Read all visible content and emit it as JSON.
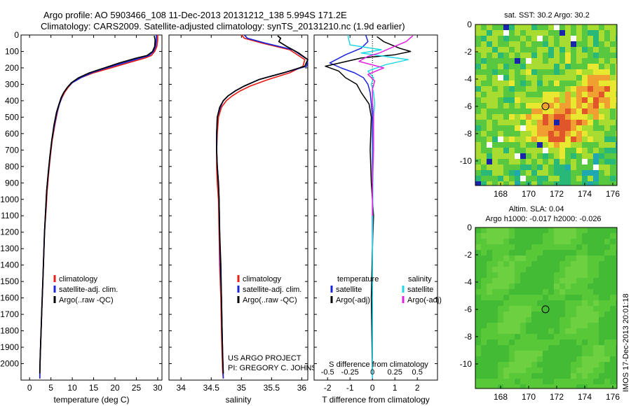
{
  "header": {
    "line1": "Argo profile: AO 5903466_108 11-Dec-2013 20131212_138 5.994S 171.2E",
    "line2": "Climatology: CARS2009. Satellite-adjusted climatology: synTS_20131210.nc (1.9d earlier)"
  },
  "sidebar_stamp": "IMOS 17-Dec-2013 20:01:18",
  "colors": {
    "climatology": "#e8201a",
    "satellite": "#1b25d8",
    "argo": "#000000",
    "cyan": "#22d8e8",
    "magenta": "#e020e0"
  },
  "chart_data": [
    {
      "type": "line",
      "name": "temperature-profile",
      "xlabel": "temperature (deg C)",
      "xlim": [
        -2,
        31
      ],
      "xticks": [
        0,
        5,
        10,
        15,
        20,
        25,
        30
      ],
      "ylim": [
        2100,
        0
      ],
      "yticks": [
        0,
        100,
        200,
        300,
        400,
        500,
        600,
        700,
        800,
        900,
        1000,
        1100,
        1200,
        1300,
        1400,
        1500,
        1600,
        1700,
        1800,
        1900,
        2000
      ],
      "legend": [
        "climatology",
        "satellite-adj. clim.",
        "Argo(..raw -QC)"
      ],
      "series": [
        {
          "name": "climatology",
          "color": "#e8201a",
          "x": [
            30,
            30,
            29.8,
            29.3,
            28.5,
            27,
            23,
            19,
            15,
            12,
            10,
            9,
            8.2,
            7.6,
            7,
            6.5,
            5.9,
            5.3,
            4.9,
            4.5,
            4.1,
            3.9,
            3.5,
            3.3,
            3.1,
            2.9,
            2.7,
            2.5,
            2.4,
            2.4
          ],
          "y": [
            0,
            30,
            70,
            100,
            125,
            140,
            170,
            200,
            230,
            260,
            290,
            320,
            350,
            380,
            420,
            470,
            550,
            640,
            730,
            830,
            950,
            1050,
            1200,
            1350,
            1500,
            1650,
            1800,
            1950,
            2050,
            2090
          ]
        },
        {
          "name": "satellite-adj. clim.",
          "color": "#1b25d8",
          "x": [
            29.7,
            29.7,
            29.5,
            29,
            28,
            26,
            22,
            18,
            14.5,
            12,
            10,
            8.8,
            8,
            7.5,
            7,
            6.4,
            5.8,
            5.2,
            4.8,
            4.4,
            4,
            3.8,
            3.5,
            3.3,
            3.1,
            2.9,
            2.7,
            2.5,
            2.4,
            2.4
          ],
          "y": [
            0,
            30,
            70,
            100,
            125,
            140,
            170,
            200,
            230,
            260,
            290,
            320,
            350,
            380,
            420,
            470,
            550,
            640,
            730,
            830,
            950,
            1050,
            1200,
            1350,
            1500,
            1650,
            1800,
            1950,
            2050,
            2090
          ]
        },
        {
          "name": "Argo",
          "color": "#000000",
          "x": [
            29.2,
            29.4,
            29.3,
            28.8,
            27.5,
            25,
            21,
            17.5,
            14,
            11.5,
            9.8,
            8.8,
            8,
            7.4,
            6.9,
            6.3,
            5.7,
            5.2,
            4.8,
            4.4,
            4,
            3.8,
            3.5,
            3.3,
            3.1,
            2.9,
            2.7,
            2.5,
            2.4,
            2.4
          ],
          "y": [
            5,
            30,
            70,
            100,
            125,
            140,
            170,
            200,
            230,
            260,
            290,
            320,
            350,
            380,
            420,
            470,
            550,
            640,
            730,
            830,
            950,
            1050,
            1200,
            1350,
            1500,
            1650,
            1800,
            1950,
            2050,
            2060
          ]
        }
      ]
    },
    {
      "type": "line",
      "name": "salinity-profile",
      "xlabel": "salinity",
      "xlim": [
        33.8,
        36.1
      ],
      "xticks": [
        34,
        34.5,
        35,
        35.5,
        36
      ],
      "xticklabels": [
        "34",
        "34.5",
        "35",
        "35.5",
        "36"
      ],
      "ylim": [
        2100,
        0
      ],
      "legend": [
        "climatology",
        "satellite-adj. clim.",
        "Argo(..raw -QC)"
      ],
      "series": [
        {
          "name": "climatology",
          "color": "#e8201a",
          "x": [
            35.0,
            35.05,
            35.35,
            35.8,
            36.05,
            36.02,
            35.8,
            35.45,
            35.15,
            34.98,
            34.85,
            34.75,
            34.67,
            34.62,
            34.6,
            34.59,
            34.59,
            34.6,
            34.62,
            34.63,
            34.64,
            34.66,
            34.67,
            34.68,
            34.69,
            34.7
          ],
          "y": [
            0,
            20,
            50,
            90,
            150,
            190,
            230,
            270,
            310,
            340,
            370,
            400,
            440,
            500,
            600,
            700,
            800,
            900,
            1000,
            1200,
            1400,
            1600,
            1800,
            1950,
            2050,
            2090
          ]
        },
        {
          "name": "satellite-adj. clim.",
          "color": "#1b25d8",
          "x": [
            35.05,
            35.1,
            35.4,
            35.85,
            36.1,
            36.08,
            35.7,
            35.3,
            35.05,
            34.9,
            34.78,
            34.7,
            34.65,
            34.6,
            34.59,
            34.59,
            34.6,
            34.62,
            34.63,
            34.64,
            34.65,
            34.67,
            34.68,
            34.69,
            34.7
          ],
          "y": [
            0,
            20,
            50,
            90,
            150,
            190,
            230,
            270,
            310,
            340,
            370,
            400,
            440,
            500,
            600,
            700,
            800,
            900,
            1000,
            1200,
            1400,
            1600,
            1800,
            1950,
            2090
          ]
        },
        {
          "name": "Argo",
          "color": "#000000",
          "x": [
            35.6,
            35.65,
            35.62,
            35.75,
            35.95,
            36.1,
            36.05,
            35.7,
            35.3,
            35.05,
            34.9,
            34.78,
            34.7,
            34.64,
            34.6,
            34.59,
            34.59,
            34.6,
            34.62,
            34.63,
            34.64,
            34.66,
            34.67,
            34.68,
            34.69,
            34.7
          ],
          "y": [
            5,
            20,
            40,
            70,
            110,
            150,
            190,
            230,
            270,
            310,
            340,
            370,
            400,
            440,
            500,
            600,
            700,
            800,
            900,
            1000,
            1200,
            1400,
            1600,
            1800,
            1950,
            2060
          ]
        }
      ]
    },
    {
      "type": "line",
      "name": "difference-profile",
      "xlabel": "T difference from climatology",
      "xlabel_top": "S difference from climatology",
      "xlim": [
        -2.6,
        2.9
      ],
      "xticks": [
        -2,
        -1,
        0,
        1,
        2
      ],
      "top_ticks": [
        -0.5,
        -0.25,
        0,
        0.25,
        0.5
      ],
      "top_tick_labels": [
        "-0.5",
        "-0.25",
        "0",
        "0.25",
        "0.5"
      ],
      "ylim": [
        2100,
        0
      ],
      "legend": [
        "temperature",
        "satellite",
        "Argo(-adj)",
        "salinity",
        "satellite",
        "Argo(-adj)"
      ],
      "series": [
        {
          "name": "temperature satellite",
          "color": "#1b25d8",
          "x": [
            -0.3,
            -0.2,
            -0.5,
            -1.2,
            -1.9,
            -1.4,
            -0.8,
            -0.4,
            -0.2,
            -0.1,
            -0.05,
            0,
            0,
            0,
            0,
            0,
            0,
            0
          ],
          "y": [
            0,
            40,
            80,
            120,
            170,
            200,
            230,
            260,
            300,
            350,
            420,
            500,
            700,
            900,
            1200,
            1500,
            1800,
            2090
          ]
        },
        {
          "name": "temperature Argo",
          "color": "#000000",
          "x": [
            0.2,
            0.5,
            1.2,
            1.7,
            1.0,
            -0.5,
            -2.1,
            -1.5,
            -1.2,
            -0.7,
            -0.5,
            -0.15,
            -0.05,
            -0.1,
            -0.05,
            0.05,
            0,
            -0.05,
            0
          ],
          "y": [
            10,
            40,
            80,
            100,
            120,
            140,
            190,
            220,
            260,
            300,
            350,
            420,
            500,
            700,
            900,
            1100,
            1300,
            1600,
            2060
          ]
        },
        {
          "name": "salinity satellite",
          "color": "#22d8e8",
          "x": [
            -1.1,
            -1.0,
            0.4,
            -0.5,
            1.6,
            0.6,
            -0.2,
            0.05,
            -0.05,
            0.05,
            0.1,
            0.05,
            0.03,
            0.02,
            0.01,
            0,
            0
          ],
          "y": [
            0,
            60,
            90,
            110,
            150,
            180,
            220,
            260,
            300,
            350,
            420,
            500,
            700,
            900,
            1200,
            1600,
            2090
          ]
        },
        {
          "name": "salinity Argo",
          "color": "#e020e0",
          "x": [
            1.8,
            1.5,
            0.8,
            0.3,
            -0.2,
            -0.6,
            0.5,
            -0.2,
            0.1,
            0,
            0,
            0.05,
            0.05,
            0,
            0
          ],
          "y": [
            5,
            40,
            80,
            110,
            130,
            160,
            200,
            240,
            280,
            330,
            400,
            500,
            700,
            900,
            1100
          ]
        }
      ]
    },
    {
      "type": "heatmap",
      "name": "sst-map",
      "title": "sat. SST: 30.2  Argo: 30.2",
      "xlim": [
        166.2,
        176.3
      ],
      "xticks": [
        168,
        170,
        172,
        174,
        176
      ],
      "ylim": [
        -11.8,
        0
      ],
      "yticks": [
        0,
        -2,
        -4,
        -6,
        -8,
        -10
      ],
      "marker": {
        "lon": 171.2,
        "lat": -5.994
      }
    },
    {
      "type": "heatmap",
      "name": "sla-map",
      "title": "Altim. SLA: 0.04",
      "subtitle": "Argo h1000: -0.017 h2000: -0.026",
      "xlim": [
        166.2,
        176.3
      ],
      "xticks": [
        168,
        170,
        172,
        174,
        176
      ],
      "ylim": [
        -11.8,
        0
      ],
      "yticks": [
        0,
        -2,
        -4,
        -6,
        -8,
        -10
      ],
      "marker": {
        "lon": 171.2,
        "lat": -5.994
      }
    }
  ],
  "annotations": {
    "project": "US ARGO PROJECT",
    "pi": "PI: GREGORY C. JOHNSON"
  }
}
